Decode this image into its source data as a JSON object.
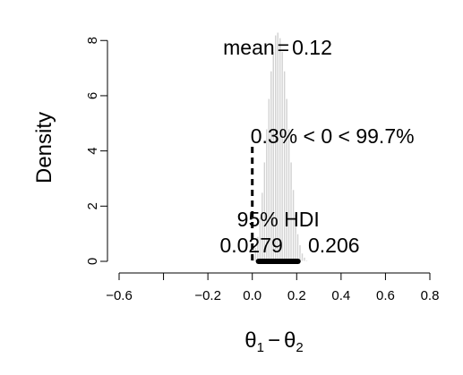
{
  "chart_data": {
    "type": "bar",
    "subtype": "histogram",
    "xlabel_parts": {
      "base1": "θ",
      "sub1": "1",
      "op": "−",
      "base2": "θ",
      "sub2": "2"
    },
    "ylabel": "Density",
    "xlim": [
      -0.6,
      0.8
    ],
    "ylim": [
      0,
      8.3
    ],
    "x_ticks": [
      -0.6,
      -0.4,
      -0.2,
      0.0,
      0.2,
      0.4,
      0.6,
      0.8
    ],
    "x_tick_labels": [
      "−0.6",
      "",
      "−0.2",
      "0.0",
      "0.2",
      "0.4",
      "0.6",
      "0.8"
    ],
    "y_ticks": [
      0,
      2,
      4,
      6,
      8
    ],
    "y_tick_labels": [
      "0",
      "2",
      "4",
      "6",
      "8"
    ],
    "bin_width": 0.01,
    "bins_start": [
      0.0,
      0.01,
      0.02,
      0.03,
      0.04,
      0.05,
      0.06,
      0.07,
      0.08,
      0.09,
      0.1,
      0.11,
      0.12,
      0.13,
      0.14,
      0.15,
      0.16,
      0.17,
      0.18,
      0.19,
      0.2,
      0.21,
      0.22,
      0.23,
      0.24
    ],
    "values": [
      0.2,
      0.5,
      0.9,
      1.6,
      2.5,
      3.6,
      4.8,
      5.9,
      6.9,
      7.6,
      8.2,
      8.3,
      8.1,
      7.6,
      6.9,
      5.9,
      4.8,
      3.6,
      2.6,
      1.7,
      1.0,
      0.6,
      0.3,
      0.15,
      0.05
    ],
    "mean_label": {
      "prefix": "mean",
      "eq": "=",
      "value": "0.12"
    },
    "comparison": {
      "value": 0,
      "text": "0.3% < 0 < 99.7%"
    },
    "hdi": {
      "label": "95% HDI",
      "low": 0.0279,
      "high": 0.206,
      "low_label": "0.0279",
      "high_label": "0.206"
    },
    "grid": false,
    "colors": {
      "bars": "#d3d3d3",
      "hdi": "#000000",
      "comparison_line": "#000000"
    }
  }
}
